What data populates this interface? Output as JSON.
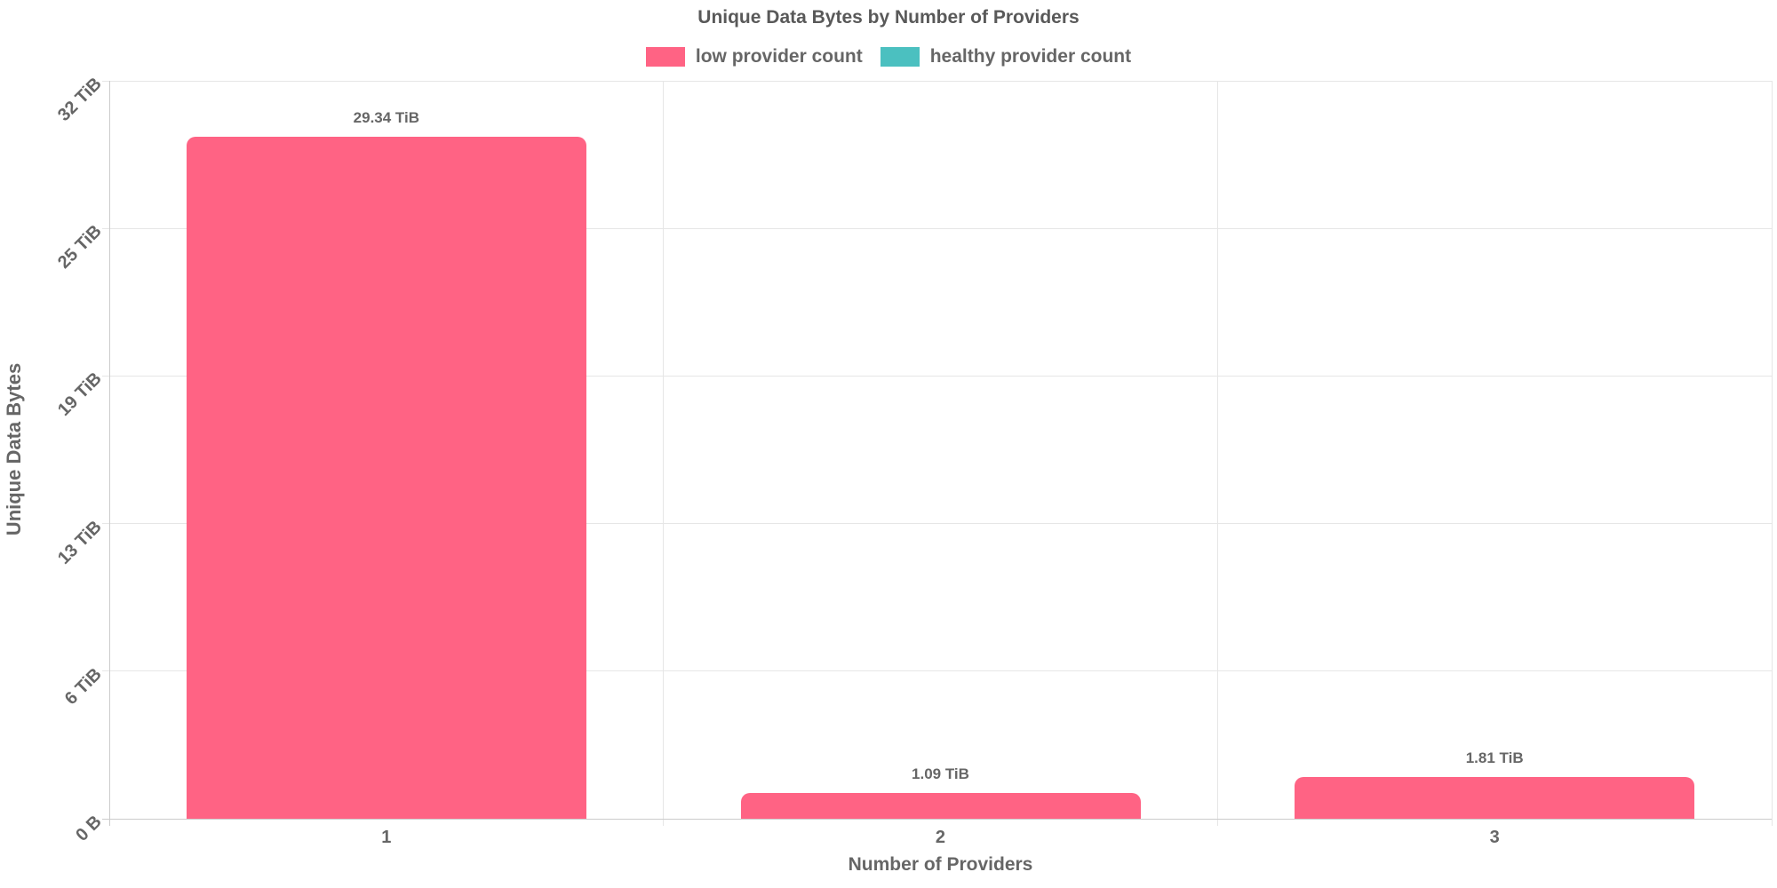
{
  "title": "Unique Data Bytes by Number of Providers",
  "legend": {
    "items": [
      {
        "label": "low provider count",
        "color": "#FF6384"
      },
      {
        "label": "healthy provider count",
        "color": "#4BC0C0"
      }
    ]
  },
  "axes": {
    "x_title": "Number of Providers",
    "y_title": "Unique Data Bytes",
    "y_tick_labels": [
      "0 B",
      "6 TiB",
      "13 TiB",
      "19 TiB",
      "25 TiB",
      "32 TiB"
    ],
    "x_tick_labels": [
      "1",
      "2",
      "3"
    ]
  },
  "chart_data": {
    "type": "bar",
    "title": "Unique Data Bytes by Number of Providers",
    "xlabel": "Number of Providers",
    "ylabel": "Unique Data Bytes",
    "categories": [
      "1",
      "2",
      "3"
    ],
    "series": [
      {
        "name": "low provider count",
        "color": "#FF6384",
        "values_tib": [
          29.34,
          1.09,
          1.81
        ],
        "value_labels": [
          "29.34 TiB",
          "1.09 TiB",
          "1.81 TiB"
        ]
      },
      {
        "name": "healthy provider count",
        "color": "#4BC0C0",
        "values_tib": [],
        "value_labels": []
      }
    ],
    "y_axis": {
      "min": 0,
      "max_tib": 31.75,
      "tick_labels": [
        "0 B",
        "6 TiB",
        "13 TiB",
        "19 TiB",
        "25 TiB",
        "32 TiB"
      ]
    },
    "grid": true,
    "legend_position": "top"
  }
}
